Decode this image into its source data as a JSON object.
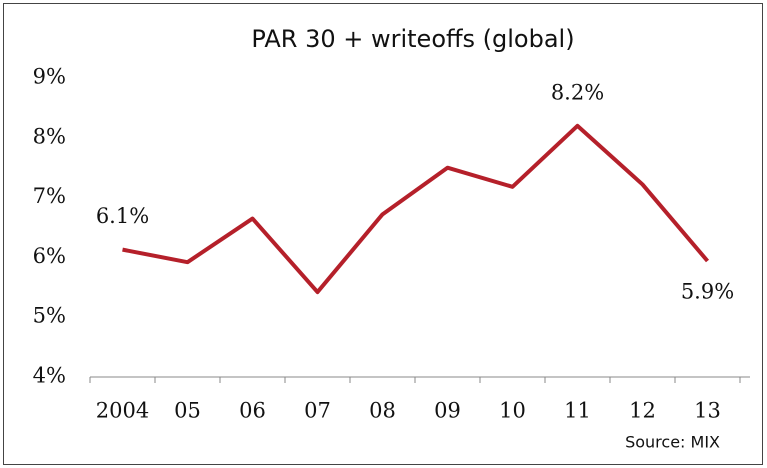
{
  "chart_data": {
    "type": "line",
    "title": "PAR 30 + writeoffs (global)",
    "categories": [
      "2004",
      "05",
      "06",
      "07",
      "08",
      "09",
      "10",
      "11",
      "12",
      "13"
    ],
    "series": [
      {
        "name": "PAR 30 + writeoffs",
        "color": "#b5202a",
        "values": [
          6.13,
          5.92,
          6.65,
          5.42,
          6.72,
          7.5,
          7.18,
          8.2,
          7.22,
          5.94
        ],
        "value_labels": [
          "6.1%",
          null,
          null,
          null,
          null,
          null,
          null,
          "8.2%",
          null,
          "5.9%"
        ]
      }
    ],
    "ylim": [
      4,
      9
    ],
    "yticks": [
      {
        "value": 4,
        "label": "4%"
      },
      {
        "value": 5,
        "label": "5%"
      },
      {
        "value": 6,
        "label": "6%"
      },
      {
        "value": 7,
        "label": "7%"
      },
      {
        "value": 8,
        "label": "8%"
      },
      {
        "value": 9,
        "label": "9%"
      }
    ],
    "grid": false,
    "annotation": "Source: MIX"
  }
}
